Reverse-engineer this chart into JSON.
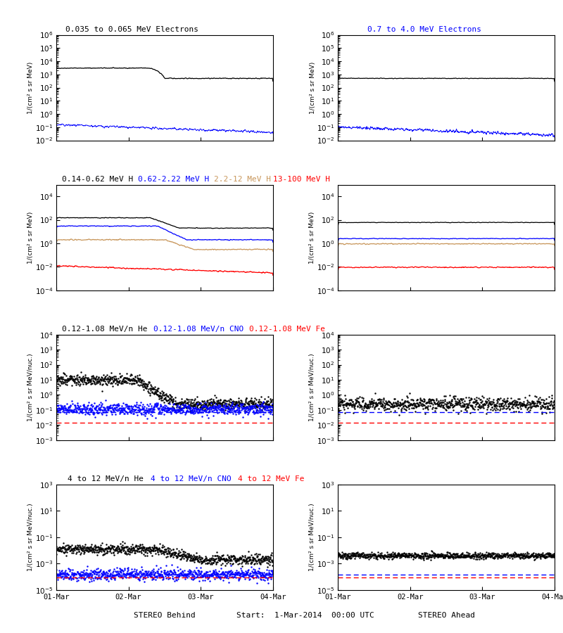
{
  "ylabel_electrons": "1/(cm² s sr MeV)",
  "ylabel_H": "1/(cm² s sr MeV)",
  "ylabel_heavy": "1/(cm² s sr MeV/nuc.)",
  "xlabel_left": "STEREO Behind",
  "xlabel_right": "STEREO Ahead",
  "xlabel_center": "Start:  1-Mar-2014  00:00 UTC",
  "xtick_labels": [
    "01-Mar",
    "02-Mar",
    "03-Mar",
    "04-Mar"
  ],
  "brown_color": "#c8965a",
  "background": "white",
  "N": 800
}
